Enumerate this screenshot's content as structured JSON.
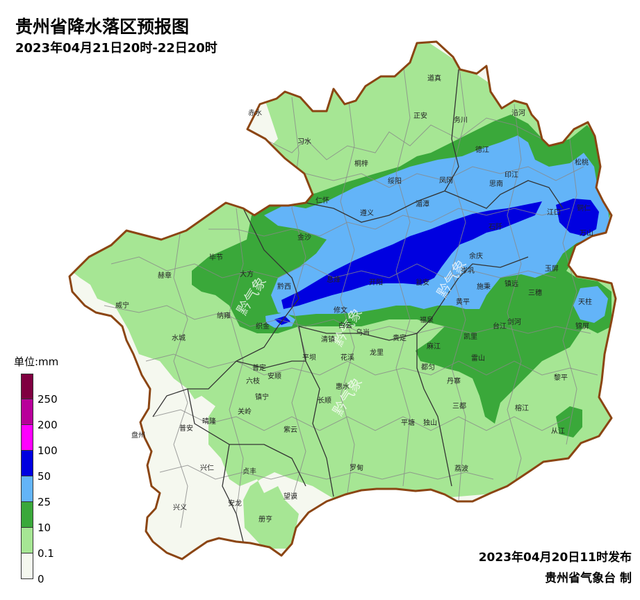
{
  "header": {
    "title": "贵州省降水落区预报图",
    "subtitle": "2023年04月21日20时-22日20时"
  },
  "legend": {
    "unit_label": "单位:mm",
    "classes": [
      {
        "label": "250",
        "color": "#7f0040"
      },
      {
        "label": "200",
        "color": "#b8009a"
      },
      {
        "label": "100",
        "color": "#ff00ff"
      },
      {
        "label": "50",
        "color": "#0000e0"
      },
      {
        "label": "25",
        "color": "#63b4f8"
      },
      {
        "label": "10",
        "color": "#3aa83a"
      },
      {
        "label": "0.1",
        "color": "#a6e694"
      },
      {
        "label": "0",
        "color": "#f5f8ef"
      }
    ]
  },
  "footer": {
    "issue_time": "2023年04月20日11时发布",
    "issuer": "贵州省气象台 制"
  },
  "watermark_text": "黔气象",
  "cities": [
    {
      "name": "道真"
    },
    {
      "name": "赤水"
    },
    {
      "name": "正安"
    },
    {
      "name": "务川"
    },
    {
      "name": "沿河"
    },
    {
      "name": "习水"
    },
    {
      "name": "德江"
    },
    {
      "name": "松桃"
    },
    {
      "name": "桐梓"
    },
    {
      "name": "绥阳"
    },
    {
      "name": "凤冈"
    },
    {
      "name": "思南"
    },
    {
      "name": "印江"
    },
    {
      "name": "仁怀"
    },
    {
      "name": "湄潭"
    },
    {
      "name": "遵义"
    },
    {
      "name": "江口"
    },
    {
      "name": "铜仁"
    },
    {
      "name": "石阡"
    },
    {
      "name": "金沙"
    },
    {
      "name": "万山"
    },
    {
      "name": "毕节"
    },
    {
      "name": "大方"
    },
    {
      "name": "余庆"
    },
    {
      "name": "玉屏"
    },
    {
      "name": "赫章"
    },
    {
      "name": "黔西"
    },
    {
      "name": "息烽"
    },
    {
      "name": "开阳"
    },
    {
      "name": "瓮安"
    },
    {
      "name": "施秉"
    },
    {
      "name": "镇远"
    },
    {
      "name": "岑巩"
    },
    {
      "name": "三穗"
    },
    {
      "name": "天柱"
    },
    {
      "name": "威宁"
    },
    {
      "name": "黄平"
    },
    {
      "name": "修文"
    },
    {
      "name": "纳雍"
    },
    {
      "name": "织金"
    },
    {
      "name": "白云"
    },
    {
      "name": "福泉"
    },
    {
      "name": "剑河"
    },
    {
      "name": "台江"
    },
    {
      "name": "锦屏"
    },
    {
      "name": "水城"
    },
    {
      "name": "清镇"
    },
    {
      "name": "乌当"
    },
    {
      "name": "凯里"
    },
    {
      "name": "贵定"
    },
    {
      "name": "麻江"
    },
    {
      "name": "平坝"
    },
    {
      "name": "花溪"
    },
    {
      "name": "龙里"
    },
    {
      "name": "雷山"
    },
    {
      "name": "普定"
    },
    {
      "name": "安顺"
    },
    {
      "name": "都匀"
    },
    {
      "name": "六枝"
    },
    {
      "name": "丹寨"
    },
    {
      "name": "黎平"
    },
    {
      "name": "长顺"
    },
    {
      "name": "惠水"
    },
    {
      "name": "镇宁"
    },
    {
      "name": "三都"
    },
    {
      "name": "关岭"
    },
    {
      "name": "榕江"
    },
    {
      "name": "普安"
    },
    {
      "name": "晴隆"
    },
    {
      "name": "紫云"
    },
    {
      "name": "平塘"
    },
    {
      "name": "独山"
    },
    {
      "name": "从江"
    },
    {
      "name": "盘州"
    },
    {
      "name": "兴仁"
    },
    {
      "name": "贞丰"
    },
    {
      "name": "罗甸"
    },
    {
      "name": "荔波"
    },
    {
      "name": "望谟"
    },
    {
      "name": "兴义"
    },
    {
      "name": "安龙"
    },
    {
      "name": "册亨"
    }
  ]
}
